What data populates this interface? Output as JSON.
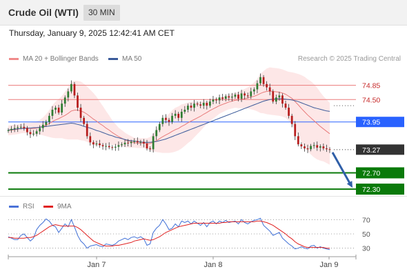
{
  "header": {
    "title": "Crude Oil (WTI)",
    "timeframe": "30 MIN"
  },
  "datetime": "Thursday, January 9, 2025 12:42:41 AM CET",
  "legend": {
    "ma20_label": "MA 20 + Bollinger Bands",
    "ma50_label": "MA 50",
    "credit": "Research © 2025 Trading Central"
  },
  "rsi_legend": {
    "rsi_label": "RSI",
    "ma_label": "9MA"
  },
  "colors": {
    "ma20": "#e87b7b",
    "band_fill": "#fde3e3",
    "ma50": "#3a5a9a",
    "up": "#2e7d32",
    "down": "#b71c1c",
    "green_level": "#0a7a0a",
    "blue_level": "#2962ff",
    "rsi": "#3f6fd6",
    "rsi_ma": "#e02020"
  },
  "chart_data": [
    {
      "type": "candlestick",
      "title": "Crude Oil (WTI)",
      "timeframe": "30 MIN",
      "x_ticks": [
        "Jan 7",
        "Jan 8",
        "Jan 9"
      ],
      "ylim": [
        72.2,
        75.25
      ],
      "last_price": 73.27,
      "levels": [
        {
          "value": 74.85,
          "label": "74.85",
          "kind": "resistance"
        },
        {
          "value": 74.5,
          "label": "74.50",
          "kind": "resistance"
        },
        {
          "value": 73.95,
          "label": "73.95",
          "kind": "pivot"
        },
        {
          "value": 73.27,
          "label": "73.27",
          "kind": "last"
        },
        {
          "value": 72.7,
          "label": "72.70",
          "kind": "support"
        },
        {
          "value": 72.3,
          "label": "72.30",
          "kind": "support"
        }
      ],
      "forecast_arrow": {
        "from": 73.27,
        "to": 72.3,
        "direction": "down"
      },
      "close": [
        73.75,
        73.78,
        73.8,
        73.82,
        73.83,
        73.8,
        73.7,
        73.65,
        73.66,
        73.72,
        73.8,
        73.88,
        73.95,
        74.1,
        74.25,
        74.3,
        74.18,
        74.4,
        74.55,
        74.7,
        74.88,
        74.6,
        74.3,
        74.05,
        73.9,
        73.6,
        73.45,
        73.4,
        73.42,
        73.38,
        73.35,
        73.36,
        73.33,
        73.32,
        73.34,
        73.38,
        73.4,
        73.44,
        73.43,
        73.46,
        73.48,
        73.45,
        73.46,
        73.42,
        73.3,
        73.28,
        73.6,
        73.75,
        73.9,
        74.05,
        74.0,
        73.95,
        74.1,
        74.15,
        74.05,
        74.2,
        74.25,
        74.35,
        74.3,
        74.4,
        74.38,
        74.35,
        74.42,
        74.35,
        74.45,
        74.5,
        74.48,
        74.55,
        74.52,
        74.58,
        74.55,
        74.57,
        74.62,
        74.52,
        74.65,
        74.6,
        74.58,
        74.7,
        74.75,
        74.9,
        75.05,
        74.88,
        74.8,
        74.7,
        74.45,
        74.55,
        74.6,
        74.4,
        74.3,
        74.1,
        73.9,
        73.6,
        73.4,
        73.35,
        73.3,
        73.28,
        73.36,
        73.38,
        73.32,
        73.35,
        73.3,
        73.28,
        73.27
      ],
      "ma20": [
        73.74,
        73.75,
        73.76,
        73.77,
        73.79,
        73.8,
        73.8,
        73.79,
        73.79,
        73.8,
        73.82,
        73.84,
        73.87,
        73.91,
        73.96,
        74.0,
        74.03,
        74.07,
        74.11,
        74.16,
        74.22,
        74.24,
        74.24,
        74.22,
        74.19,
        74.14,
        74.08,
        74.02,
        73.97,
        73.91,
        73.86,
        73.8,
        73.75,
        73.69,
        73.64,
        73.59,
        73.55,
        73.51,
        73.48,
        73.46,
        73.44,
        73.43,
        73.43,
        73.43,
        73.42,
        73.42,
        73.45,
        73.49,
        73.54,
        73.59,
        73.63,
        73.67,
        73.72,
        73.76,
        73.79,
        73.84,
        73.88,
        73.93,
        73.97,
        74.01,
        74.05,
        74.09,
        74.14,
        74.18,
        74.23,
        74.27,
        74.31,
        74.35,
        74.38,
        74.41,
        74.44,
        74.46,
        74.48,
        74.49,
        74.51,
        74.52,
        74.54,
        74.56,
        74.58,
        74.61,
        74.65,
        74.68,
        74.7,
        74.71,
        74.7,
        74.69,
        74.68,
        74.66,
        74.63,
        74.58,
        74.53,
        74.45,
        74.37,
        74.28,
        74.2,
        74.12,
        74.05,
        73.98,
        73.91,
        73.84,
        73.78,
        73.72,
        73.66
      ],
      "bb_half_width": [
        0.12,
        0.12,
        0.12,
        0.12,
        0.12,
        0.12,
        0.13,
        0.14,
        0.15,
        0.16,
        0.18,
        0.22,
        0.27,
        0.33,
        0.4,
        0.45,
        0.48,
        0.52,
        0.58,
        0.64,
        0.7,
        0.72,
        0.72,
        0.72,
        0.7,
        0.68,
        0.66,
        0.64,
        0.6,
        0.54,
        0.48,
        0.42,
        0.36,
        0.3,
        0.26,
        0.22,
        0.2,
        0.18,
        0.16,
        0.14,
        0.12,
        0.12,
        0.12,
        0.12,
        0.13,
        0.16,
        0.22,
        0.28,
        0.34,
        0.4,
        0.44,
        0.48,
        0.52,
        0.54,
        0.54,
        0.54,
        0.52,
        0.5,
        0.48,
        0.44,
        0.4,
        0.36,
        0.32,
        0.28,
        0.26,
        0.24,
        0.22,
        0.2,
        0.19,
        0.18,
        0.18,
        0.18,
        0.18,
        0.2,
        0.22,
        0.24,
        0.26,
        0.3,
        0.34,
        0.4,
        0.48,
        0.52,
        0.56,
        0.58,
        0.58,
        0.58,
        0.58,
        0.58,
        0.58,
        0.6,
        0.64,
        0.7,
        0.76,
        0.82,
        0.86,
        0.88,
        0.9,
        0.9,
        0.88,
        0.84,
        0.8,
        0.78,
        0.76
      ],
      "ma50": [
        73.75,
        73.76,
        73.77,
        73.78,
        73.79,
        73.79,
        73.8,
        73.8,
        73.81,
        73.81,
        73.82,
        73.83,
        73.84,
        73.85,
        73.86,
        73.87,
        73.88,
        73.89,
        73.9,
        73.91,
        73.92,
        73.91,
        73.89,
        73.87,
        73.84,
        73.82,
        73.8,
        73.77,
        73.74,
        73.72,
        73.69,
        73.66,
        73.63,
        73.61,
        73.58,
        73.56,
        73.54,
        73.52,
        73.5,
        73.49,
        73.48,
        73.47,
        73.46,
        73.45,
        73.45,
        73.45,
        73.46,
        73.47,
        73.49,
        73.51,
        73.53,
        73.56,
        73.59,
        73.62,
        73.65,
        73.68,
        73.71,
        73.74,
        73.77,
        73.8,
        73.83,
        73.86,
        73.89,
        73.92,
        73.95,
        73.98,
        74.01,
        74.04,
        74.07,
        74.1,
        74.13,
        74.16,
        74.19,
        74.22,
        74.25,
        74.28,
        74.31,
        74.34,
        74.37,
        74.4,
        74.43,
        74.46,
        74.48,
        74.5,
        74.51,
        74.52,
        74.52,
        74.52,
        74.51,
        74.5,
        74.49,
        74.47,
        74.45,
        74.42,
        74.39,
        74.36,
        74.33,
        74.3,
        74.28,
        74.26,
        74.24,
        74.22,
        74.21
      ]
    },
    {
      "type": "line",
      "title": "RSI",
      "series": [
        {
          "name": "RSI",
          "values": [
            46,
            44,
            42,
            42,
            48,
            50,
            45,
            40,
            44,
            56,
            62,
            66,
            71,
            68,
            62,
            60,
            52,
            58,
            64,
            60,
            70,
            60,
            48,
            40,
            36,
            30,
            33,
            34,
            35,
            33,
            32,
            36,
            35,
            34,
            36,
            40,
            42,
            44,
            42,
            45,
            46,
            44,
            46,
            43,
            34,
            36,
            52,
            58,
            62,
            70,
            64,
            56,
            58,
            64,
            60,
            68,
            66,
            68,
            64,
            68,
            65,
            62,
            66,
            60,
            66,
            68,
            64,
            68,
            66,
            69,
            66,
            67,
            68,
            64,
            70,
            66,
            64,
            67,
            69,
            70,
            72,
            62,
            58,
            54,
            48,
            50,
            52,
            44,
            40,
            36,
            33,
            29,
            30,
            32,
            30,
            29,
            33,
            34,
            30,
            32,
            30,
            29,
            28
          ]
        },
        {
          "name": "9MA",
          "values": [
            45,
            45,
            44,
            44,
            44,
            44,
            45,
            45,
            46,
            48,
            51,
            54,
            57,
            60,
            62,
            63,
            62,
            61,
            61,
            61,
            61,
            61,
            59,
            56,
            52,
            48,
            44,
            40,
            38,
            36,
            34,
            33,
            33,
            33,
            34,
            34,
            35,
            36,
            37,
            38,
            40,
            41,
            42,
            43,
            42,
            41,
            42,
            44,
            46,
            49,
            52,
            54,
            56,
            58,
            60,
            61,
            62,
            63,
            64,
            65,
            65,
            65,
            65,
            65,
            65,
            65,
            65,
            65,
            66,
            66,
            67,
            67,
            67,
            67,
            67,
            67,
            67,
            67,
            67,
            68,
            68,
            67,
            66,
            64,
            62,
            59,
            56,
            53,
            50,
            46,
            43,
            39,
            36,
            34,
            32,
            31,
            31,
            31,
            31,
            31,
            31,
            30,
            30
          ]
        }
      ],
      "y_ticks": [
        70,
        50,
        30
      ],
      "ylim": [
        20,
        80
      ]
    }
  ]
}
